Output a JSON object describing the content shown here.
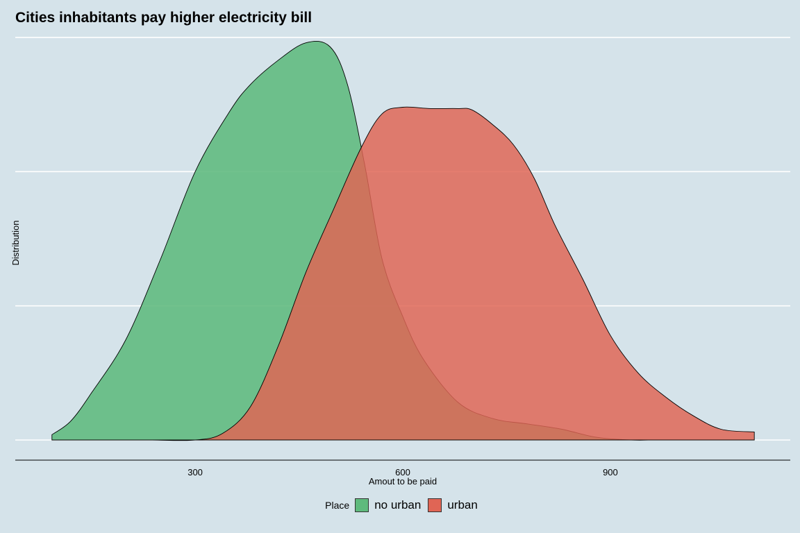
{
  "chart_data": {
    "type": "area",
    "title": "Cities inhabitants pay higher electricity bill",
    "xlabel": "Amout to be paid",
    "ylabel": "Distribution",
    "xlim": [
      40,
      1160
    ],
    "ylim": [
      0,
      0.00301
    ],
    "x_ticks": [
      300,
      600,
      900
    ],
    "y_gridlines": [
      0,
      0.001,
      0.002,
      0.003
    ],
    "y_tick_labels_visible": false,
    "legend": {
      "title": "Place",
      "position": "bottom"
    },
    "series": [
      {
        "name": "no urban",
        "color": "#5fba7d",
        "x": [
          93,
          120,
          150,
          200,
          250,
          300,
          350,
          380,
          420,
          460,
          495,
          520,
          545,
          570,
          600,
          630,
          680,
          730,
          780,
          830,
          880,
          930,
          960
        ],
        "y": [
          4e-05,
          0.00014,
          0.00035,
          0.00075,
          0.00135,
          0.002,
          0.00245,
          0.00265,
          0.00283,
          0.00296,
          0.00293,
          0.00265,
          0.00205,
          0.00135,
          0.00092,
          0.0006,
          0.00028,
          0.00016,
          0.00012,
          8e-05,
          2e-05,
          0.0,
          0.0
        ]
      },
      {
        "name": "urban",
        "color": "#e06555",
        "x": [
          238,
          300,
          340,
          380,
          420,
          460,
          500,
          540,
          570,
          600,
          640,
          680,
          700,
          730,
          760,
          790,
          820,
          860,
          900,
          940,
          980,
          1020,
          1060,
          1108
        ],
        "y": [
          0.0,
          0.0,
          5e-05,
          0.00025,
          0.0007,
          0.00125,
          0.00172,
          0.00218,
          0.00243,
          0.00248,
          0.00247,
          0.00247,
          0.00246,
          0.00235,
          0.0022,
          0.00195,
          0.0016,
          0.0012,
          0.00078,
          0.0005,
          0.00032,
          0.00018,
          8e-05,
          6e-05
        ]
      }
    ]
  }
}
